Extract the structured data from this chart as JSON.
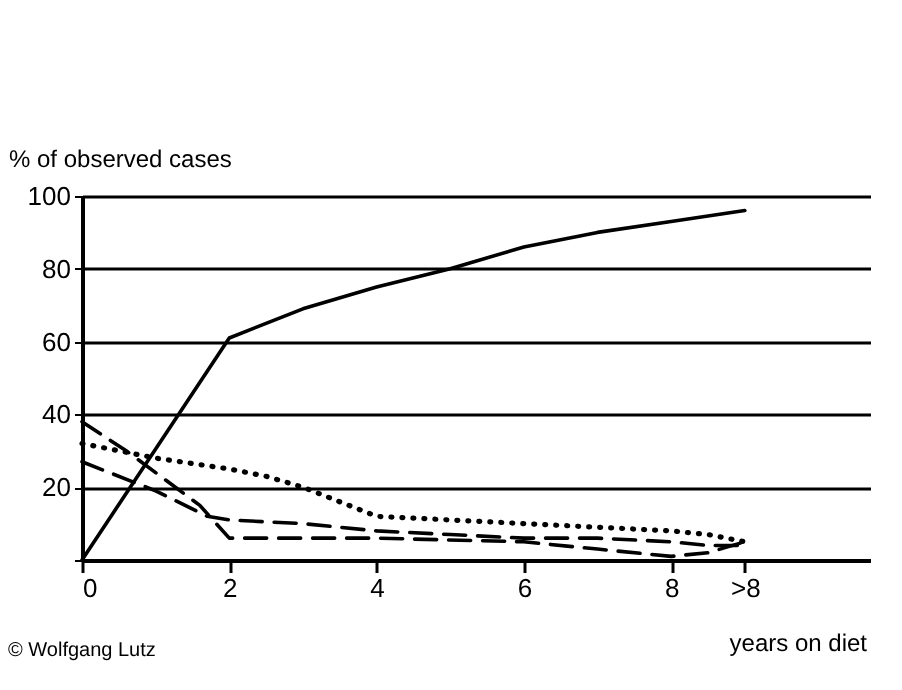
{
  "chart_data": {
    "type": "line",
    "ylabel": "% of observed cases",
    "xlabel": "years on diet",
    "annotations": [
      "© Wolfgang Lutz"
    ],
    "xlim": [
      0,
      10.7
    ],
    "xticks": [
      0,
      2,
      4,
      6,
      8,
      {
        "value": 9,
        "label": ">8"
      }
    ],
    "ylim": [
      0,
      100
    ],
    "yticks": [
      {
        "value": 0,
        "label": null
      },
      20,
      40,
      60,
      80,
      100
    ],
    "grid": "y",
    "marker": "none",
    "series": [
      {
        "color": "#000000",
        "line_style": "solid",
        "x": [
          0,
          2,
          3,
          4,
          5,
          6,
          7,
          8,
          9
        ],
        "values": [
          0,
          61,
          69,
          75,
          80,
          86,
          90,
          93,
          96
        ]
      },
      {
        "color": "#000000",
        "line_style": "dotted",
        "x": [
          0,
          0.5,
          1,
          2,
          2.5,
          3,
          3.5,
          4,
          5,
          6,
          7,
          8,
          8.5,
          9
        ],
        "values": [
          32,
          30,
          28,
          25,
          23,
          20,
          16,
          12,
          11,
          10,
          9,
          8,
          7,
          5
        ]
      },
      {
        "color": "#000000",
        "line_style": "dashed",
        "x": [
          0,
          1,
          1.7,
          2,
          3,
          4,
          5,
          6,
          7,
          8,
          8.5,
          9
        ],
        "values": [
          27,
          19,
          12,
          11,
          10,
          8,
          7,
          6,
          6,
          5,
          4,
          4
        ]
      },
      {
        "color": "#000000",
        "line_style": "dashed",
        "x": [
          0,
          0.6,
          1.2,
          1.6,
          2,
          4,
          6,
          7,
          8,
          8.5,
          9
        ],
        "values": [
          38,
          30,
          21,
          15,
          6,
          6,
          5,
          3,
          1,
          2,
          5
        ]
      }
    ]
  }
}
